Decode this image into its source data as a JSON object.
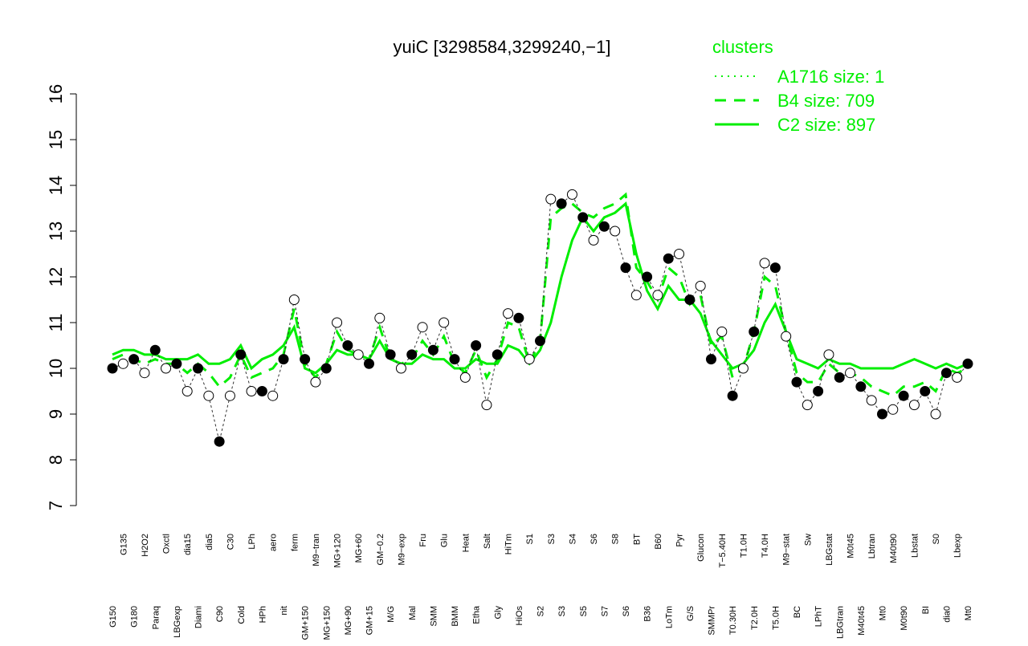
{
  "chart_data": {
    "type": "line",
    "title": "yuiC [3298584,3299240,−1]",
    "legend_title": "clusters",
    "legend": "top-right",
    "categories": [
      "G150",
      "G135",
      "G180",
      "H2O2",
      "Paraq",
      "Oxctl",
      "LBGexp",
      "dia15",
      "Diami",
      "dia5",
      "C90",
      "C30",
      "Cold",
      "LPh",
      "HPh",
      "aero",
      "nit",
      "ferm",
      "GM+150",
      "M9−tran",
      "MG+150",
      "MG+120",
      "MG+90",
      "MG+60",
      "GM+15",
      "GM−0.2",
      "M/G",
      "M9−exp",
      "Mal",
      "Fru",
      "SMM",
      "Glu",
      "BMM",
      "Heat",
      "Etha",
      "Salt",
      "Gly",
      "HiTm",
      "HiOs",
      "S1",
      "S2",
      "S3",
      "S3",
      "S4",
      "S5",
      "S6",
      "S7",
      "S8",
      "S6",
      "BT",
      "B36",
      "B60",
      "LoTm",
      "Pyr",
      "G/S",
      "Glucon",
      "SMMPr",
      "T−5.40H",
      "T0.30H",
      "T1.0H",
      "T2.0H",
      "T4.0H",
      "T5.0H",
      "M9−stat",
      "BC",
      "Sw",
      "LPhT",
      "LBGstat",
      "LBGtran",
      "M0t45",
      "M40t45",
      "Lbtran",
      "Mt0",
      "M40t90",
      "M0t90",
      "Lbstat",
      "BI",
      "S0",
      "dia0",
      "Lbexp",
      "Mt0"
    ],
    "series": [
      {
        "name": "A1716 size: 1",
        "color": "#00ee00",
        "dash": "dotted",
        "values": [
          10.0,
          10.1,
          10.2,
          9.9,
          10.4,
          10.0,
          10.1,
          9.5,
          10.0,
          9.4,
          8.4,
          9.4,
          10.3,
          9.5,
          9.5,
          9.4,
          10.2,
          11.5,
          10.2,
          9.7,
          10.0,
          11.0,
          10.5,
          10.3,
          10.1,
          11.1,
          10.3,
          10.0,
          10.3,
          10.9,
          10.4,
          11.0,
          10.2,
          9.8,
          10.5,
          9.2,
          10.3,
          11.2,
          11.1,
          10.2,
          10.6,
          13.7,
          13.6,
          13.8,
          13.3,
          12.8,
          13.1,
          13.0,
          12.2,
          11.6,
          12.0,
          11.6,
          12.4,
          12.5,
          11.5,
          11.8,
          10.2,
          10.8,
          9.4,
          10.0,
          10.8,
          12.3,
          12.2,
          10.7,
          9.7,
          9.2,
          9.5,
          10.3,
          9.8,
          9.9,
          9.6,
          9.3,
          9.0,
          9.1,
          9.4,
          9.2,
          9.5,
          9.0,
          9.9,
          9.8,
          10.1
        ]
      },
      {
        "name": "B4 size: 709",
        "color": "#00ee00",
        "dash": "dashed",
        "values": [
          10.2,
          10.3,
          10.2,
          10.1,
          10.2,
          10.1,
          10.1,
          9.9,
          10.1,
          9.9,
          9.6,
          9.8,
          10.3,
          9.8,
          9.9,
          10.0,
          10.3,
          11.3,
          10.1,
          9.8,
          10.1,
          10.8,
          10.4,
          10.3,
          10.2,
          10.9,
          10.2,
          10.1,
          10.2,
          10.6,
          10.3,
          10.7,
          10.1,
          9.9,
          10.4,
          9.8,
          10.2,
          11.0,
          10.9,
          10.1,
          10.6,
          13.3,
          13.5,
          13.6,
          13.4,
          13.3,
          13.5,
          13.6,
          13.8,
          12.2,
          11.9,
          11.5,
          12.2,
          12.0,
          11.4,
          11.6,
          10.5,
          10.7,
          9.8,
          10.0,
          10.8,
          12.0,
          11.8,
          10.8,
          9.9,
          9.7,
          9.7,
          10.1,
          9.9,
          9.9,
          9.8,
          9.6,
          9.5,
          9.4,
          9.6,
          9.6,
          9.7,
          9.5,
          10.0,
          9.9,
          10.0
        ]
      },
      {
        "name": "C2 size: 897",
        "color": "#00ee00",
        "dash": "solid",
        "values": [
          10.3,
          10.4,
          10.4,
          10.3,
          10.3,
          10.2,
          10.2,
          10.2,
          10.3,
          10.1,
          10.1,
          10.2,
          10.5,
          10.0,
          10.2,
          10.3,
          10.5,
          10.9,
          10.0,
          9.9,
          10.1,
          10.4,
          10.3,
          10.3,
          10.2,
          10.6,
          10.2,
          10.1,
          10.1,
          10.3,
          10.2,
          10.2,
          10.0,
          10.0,
          10.2,
          10.1,
          10.1,
          10.5,
          10.4,
          10.1,
          10.4,
          11.0,
          12.0,
          12.8,
          13.3,
          13.0,
          13.3,
          13.4,
          13.6,
          12.5,
          11.7,
          11.3,
          11.8,
          11.5,
          11.5,
          11.2,
          10.6,
          10.3,
          10.0,
          10.1,
          10.4,
          11.0,
          11.4,
          10.8,
          10.2,
          10.1,
          10.0,
          10.2,
          10.1,
          10.1,
          10.0,
          10.0,
          10.0,
          10.0,
          10.1,
          10.2,
          10.1,
          10.0,
          10.1,
          10.0,
          10.1
        ]
      }
    ],
    "ylim": [
      7,
      16
    ],
    "yticks": [
      7,
      8,
      9,
      10,
      11,
      12,
      13,
      14,
      15,
      16
    ]
  }
}
